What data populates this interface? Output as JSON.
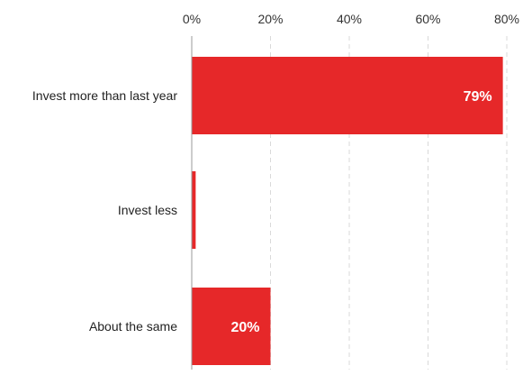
{
  "chart_data": {
    "type": "bar",
    "orientation": "horizontal",
    "categories": [
      "Invest more than last year",
      "Invest less",
      "About the same"
    ],
    "values": [
      79,
      1,
      20
    ],
    "data_labels": [
      "79%",
      "",
      "20%"
    ],
    "xlim": [
      0,
      80
    ],
    "xticks": [
      0,
      20,
      40,
      60,
      80
    ],
    "xtick_labels": [
      "0%",
      "20%",
      "40%",
      "60%",
      "80%"
    ],
    "x_axis_position": "top",
    "grid": true,
    "legend": "none",
    "colors": {
      "bar": "#e62829",
      "grid": "#d9d9d9",
      "text": "#222222"
    }
  }
}
